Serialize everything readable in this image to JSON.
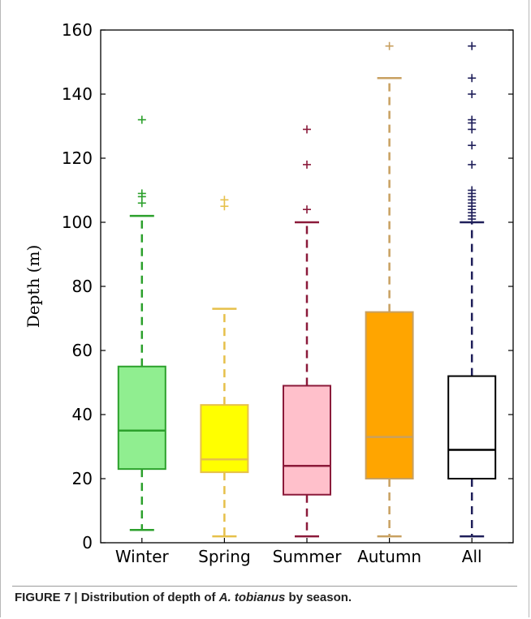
{
  "caption": {
    "label": "FIGURE 7 | Distribution of depth of ",
    "species": "A. tobianus",
    "suffix": " by season."
  },
  "chart_data": {
    "type": "box",
    "title": "",
    "xlabel": "",
    "ylabel": "Depth (m)",
    "ylim": [
      0,
      160
    ],
    "yticks": [
      0,
      20,
      40,
      60,
      80,
      100,
      120,
      140,
      160
    ],
    "grid": false,
    "legend": "none",
    "categories": [
      "Winter",
      "Spring",
      "Summer",
      "Autumn",
      "All"
    ],
    "series": [
      {
        "category": "Winter",
        "whisker_low": 4,
        "q1": 23,
        "median": 35,
        "q3": 55,
        "whisker_high": 102,
        "outliers": [
          106,
          108,
          109,
          132
        ],
        "fill": "#90ee90",
        "stroke": "#2ca02c"
      },
      {
        "category": "Spring",
        "whisker_low": 2,
        "q1": 22,
        "median": 26,
        "q3": 43,
        "whisker_high": 73,
        "outliers": [
          105,
          107
        ],
        "fill": "#ffff00",
        "stroke": "#e6c04a"
      },
      {
        "category": "Summer",
        "whisker_low": 2,
        "q1": 15,
        "median": 24,
        "q3": 49,
        "whisker_high": 100,
        "outliers": [
          104,
          118,
          129
        ],
        "fill": "#ffc0cb",
        "stroke": "#8b1a3a"
      },
      {
        "category": "Autumn",
        "whisker_low": 2,
        "q1": 20,
        "median": 33,
        "q3": 72,
        "whisker_high": 145,
        "outliers": [
          155
        ],
        "fill": "#ffa500",
        "stroke": "#c8a060"
      },
      {
        "category": "All",
        "whisker_low": 2,
        "q1": 20,
        "median": 29,
        "q3": 52,
        "whisker_high": 100,
        "outliers": [
          101,
          102,
          103,
          104,
          105,
          106,
          107,
          108,
          109,
          110,
          118,
          124,
          129,
          131,
          132,
          140,
          145,
          155
        ],
        "fill": "#ffffff",
        "stroke": "#000000",
        "whisker_color": "#1f1f5a"
      }
    ]
  }
}
